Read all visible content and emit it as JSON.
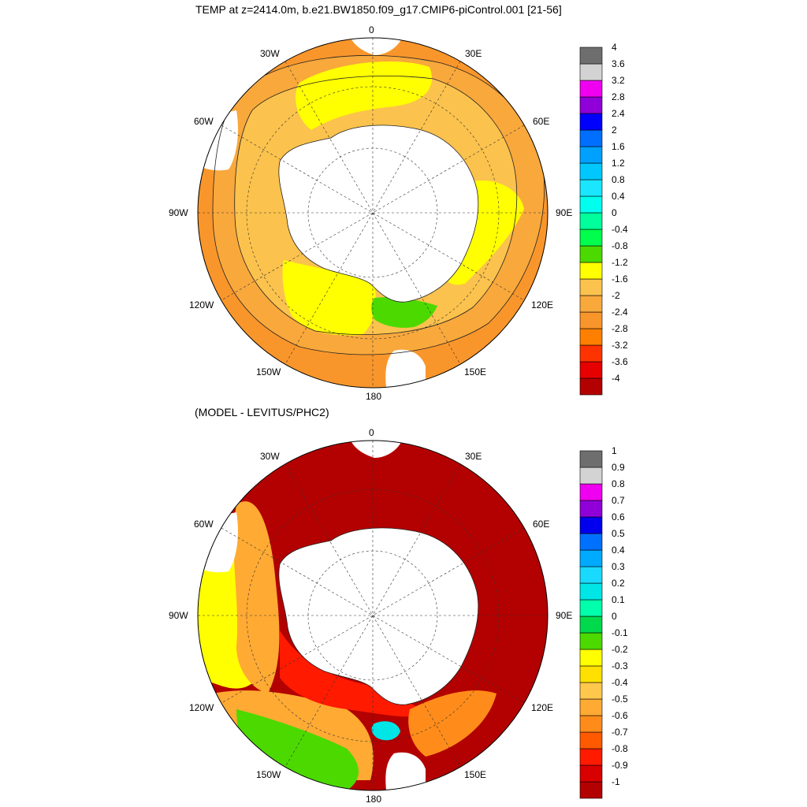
{
  "top": {
    "title": "TEMP at z=2414.0m, b.e21.BW1850.f09_g17.CMIP6-piControl.001 [21-56]",
    "lon_labels": {
      "n": "0",
      "ne": "30E",
      "nw": "30W",
      "e1": "60E",
      "w1": "60W",
      "e": "90E",
      "w": "90W",
      "se1": "120E",
      "sw1": "120W",
      "se2": "150E",
      "sw2": "150W",
      "s": "180"
    },
    "colorbar": {
      "labels": [
        "4",
        "3.6",
        "3.2",
        "2.8",
        "2.4",
        "2",
        "1.6",
        "1.2",
        "0.8",
        "0.4",
        "0",
        "-0.4",
        "-0.8",
        "-1.2",
        "-1.6",
        "-2",
        "-2.4",
        "-2.8",
        "-3.2",
        "-3.6",
        "-4"
      ],
      "colors": [
        "#b30000",
        "#e60000",
        "#ff3300",
        "#ff8000",
        "#f9962b",
        "#f9a83c",
        "#fbc24d",
        "#ffff00",
        "#4cd900",
        "#00ff4c",
        "#00ff9c",
        "#00ffee",
        "#1ae6ff",
        "#00c8ff",
        "#00a0ff",
        "#006fff",
        "#0000ff",
        "#9000d8",
        "#f000f0",
        "#d3d3d3",
        "#6e6e6e"
      ]
    }
  },
  "bottom": {
    "title": "(MODEL - LEVITUS/PHC2)",
    "lon_labels": {
      "n": "0",
      "ne": "30E",
      "nw": "30W",
      "e1": "60E",
      "w1": "60W",
      "e": "90E",
      "w": "90W",
      "se1": "120E",
      "sw1": "120W",
      "se2": "150E",
      "sw2": "150W",
      "s": "180"
    },
    "colorbar": {
      "labels": [
        "1",
        "0.9",
        "0.8",
        "0.7",
        "0.6",
        "0.5",
        "0.4",
        "0.3",
        "0.2",
        "0.1",
        "0",
        "-0.1",
        "-0.2",
        "-0.3",
        "-0.4",
        "-0.5",
        "-0.6",
        "-0.7",
        "-0.8",
        "-0.9",
        "-1"
      ],
      "colors": [
        "#b30000",
        "#d90000",
        "#ff1a00",
        "#ff5a00",
        "#ff8c1a",
        "#ffaa33",
        "#ffc84d",
        "#ffe000",
        "#ffff00",
        "#4cd900",
        "#00d94c",
        "#00ffaa",
        "#00e6e6",
        "#1ad9ff",
        "#00aaff",
        "#0070ff",
        "#0000ee",
        "#9000d8",
        "#f000f0",
        "#d3d3d3",
        "#6e6e6e"
      ]
    }
  }
}
